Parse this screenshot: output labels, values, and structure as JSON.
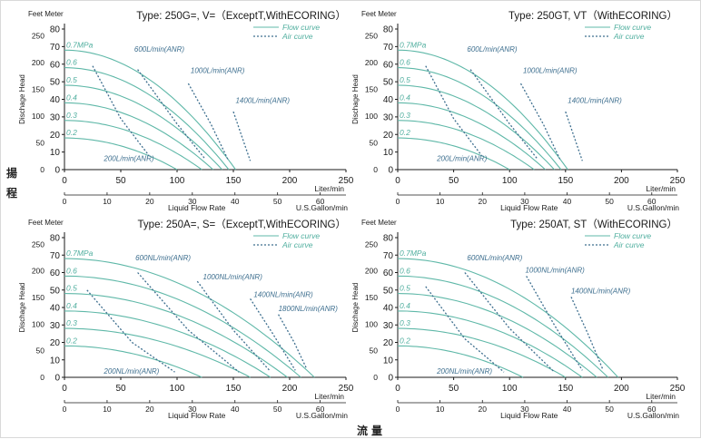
{
  "page": {
    "side_label_1": "揚",
    "side_label_2": "程",
    "bottom_label": "流量"
  },
  "chart_data": [
    {
      "type": "line",
      "title": "Type: 250G=, V=（ExceptT,WithECORING）",
      "y_units": "Feet Meter",
      "ylabel": "Dischage Head",
      "xlabel": "Liquid Flow Rate",
      "x_units_top": "Liter/min",
      "x_units_bottom": "U.S.Gallon/min",
      "xlim": [
        0,
        250
      ],
      "ylim": [
        0,
        80
      ],
      "x_ticks": [
        0,
        50,
        100,
        150,
        200,
        250
      ],
      "y_ticks": [
        0,
        10,
        20,
        30,
        40,
        50,
        60,
        70,
        80
      ],
      "ft_ticks": [
        0,
        50,
        100,
        150,
        200,
        250
      ],
      "gal_ticks": [
        0,
        10,
        20,
        30,
        40,
        50,
        60
      ],
      "legend": {
        "flow": "Flow curve",
        "air": "Air curve",
        "position": "top-right"
      },
      "grid": false,
      "flow_curves": [
        {
          "label": "0.7MPa",
          "shutoff": 68,
          "max_flow": 152
        },
        {
          "label": "0.6",
          "shutoff": 58,
          "max_flow": 146
        },
        {
          "label": "0.5",
          "shutoff": 48,
          "max_flow": 140
        },
        {
          "label": "0.4",
          "shutoff": 38,
          "max_flow": 132
        },
        {
          "label": "0.3",
          "shutoff": 28,
          "max_flow": 122
        },
        {
          "label": "0.2",
          "shutoff": 18,
          "max_flow": 100
        }
      ],
      "air_curves": [
        {
          "label": "200L/min(ANR)",
          "points": [
            [
              25,
              59
            ],
            [
              50,
              29
            ],
            [
              75,
              8
            ]
          ],
          "label_at": [
            35,
            5
          ]
        },
        {
          "label": "600L/min(ANR)",
          "points": [
            [
              65,
              57
            ],
            [
              100,
              26
            ],
            [
              125,
              6
            ]
          ],
          "label_at": [
            62,
            67
          ]
        },
        {
          "label": "1000L/min(ANR)",
          "points": [
            [
              110,
              49
            ],
            [
              130,
              26
            ],
            [
              145,
              6
            ]
          ],
          "label_at": [
            112,
            55
          ]
        },
        {
          "label": "1400L/min(ANR)",
          "points": [
            [
              150,
              33
            ],
            [
              158,
              18
            ],
            [
              165,
              5
            ]
          ],
          "label_at": [
            152,
            38
          ]
        }
      ]
    },
    {
      "type": "line",
      "title": "Type: 250GT, VT（WithECORING）",
      "y_units": "Feet Meter",
      "ylabel": "Dischage Head",
      "xlabel": "Liquid Flow Rate",
      "x_units_top": "Liter/min",
      "x_units_bottom": "U.S.Gallon/min",
      "xlim": [
        0,
        250
      ],
      "ylim": [
        0,
        80
      ],
      "x_ticks": [
        0,
        50,
        100,
        150,
        200,
        250
      ],
      "y_ticks": [
        0,
        10,
        20,
        30,
        40,
        50,
        60,
        70,
        80
      ],
      "ft_ticks": [
        0,
        50,
        100,
        150,
        200,
        250
      ],
      "gal_ticks": [
        0,
        10,
        20,
        30,
        40,
        50,
        60
      ],
      "legend": {
        "flow": "Flow curve",
        "air": "Air curve",
        "position": "top-right"
      },
      "grid": false,
      "flow_curves": [
        {
          "label": "0.7MPa",
          "shutoff": 68,
          "max_flow": 152
        },
        {
          "label": "0.6",
          "shutoff": 58,
          "max_flow": 146
        },
        {
          "label": "0.5",
          "shutoff": 48,
          "max_flow": 140
        },
        {
          "label": "0.4",
          "shutoff": 38,
          "max_flow": 132
        },
        {
          "label": "0.3",
          "shutoff": 28,
          "max_flow": 122
        },
        {
          "label": "0.2",
          "shutoff": 18,
          "max_flow": 100
        }
      ],
      "air_curves": [
        {
          "label": "200L/min(ANR)",
          "points": [
            [
              25,
              59
            ],
            [
              50,
              29
            ],
            [
              75,
              8
            ]
          ],
          "label_at": [
            35,
            5
          ]
        },
        {
          "label": "600L/min(ANR)",
          "points": [
            [
              65,
              57
            ],
            [
              100,
              26
            ],
            [
              125,
              6
            ]
          ],
          "label_at": [
            62,
            67
          ]
        },
        {
          "label": "1000L/min(ANR)",
          "points": [
            [
              110,
              49
            ],
            [
              130,
              26
            ],
            [
              145,
              6
            ]
          ],
          "label_at": [
            112,
            55
          ]
        },
        {
          "label": "1400L/min(ANR)",
          "points": [
            [
              150,
              33
            ],
            [
              158,
              18
            ],
            [
              165,
              5
            ]
          ],
          "label_at": [
            152,
            38
          ]
        }
      ]
    },
    {
      "type": "line",
      "title": "Type: 250A=, S=（ExceptT,WithECORING）",
      "y_units": "Feet Meter",
      "ylabel": "Dischage Head",
      "xlabel": "Liquid Flow Rate",
      "x_units_top": "Liter/min",
      "x_units_bottom": "U.S.Gallon/min",
      "xlim": [
        0,
        250
      ],
      "ylim": [
        0,
        80
      ],
      "x_ticks": [
        0,
        50,
        100,
        150,
        200,
        250
      ],
      "y_ticks": [
        0,
        10,
        20,
        30,
        40,
        50,
        60,
        70,
        80
      ],
      "ft_ticks": [
        0,
        50,
        100,
        150,
        200,
        250
      ],
      "gal_ticks": [
        0,
        10,
        20,
        30,
        40,
        50,
        60
      ],
      "legend": {
        "flow": "Flow curve",
        "air": "Air curve",
        "position": "top-right"
      },
      "grid": false,
      "flow_curves": [
        {
          "label": "0.7MPa",
          "shutoff": 68,
          "max_flow": 222
        },
        {
          "label": "0.6",
          "shutoff": 58,
          "max_flow": 210
        },
        {
          "label": "0.5",
          "shutoff": 48,
          "max_flow": 198
        },
        {
          "label": "0.4",
          "shutoff": 38,
          "max_flow": 183
        },
        {
          "label": "0.3",
          "shutoff": 28,
          "max_flow": 165
        },
        {
          "label": "0.2",
          "shutoff": 18,
          "max_flow": 122
        }
      ],
      "air_curves": [
        {
          "label": "200NL/min(ANR)",
          "points": [
            [
              20,
              50
            ],
            [
              60,
              20
            ],
            [
              98,
              3
            ]
          ],
          "label_at": [
            35,
            2
          ]
        },
        {
          "label": "600NL/min(ANR)",
          "points": [
            [
              65,
              60
            ],
            [
              110,
              27
            ],
            [
              155,
              3
            ]
          ],
          "label_at": [
            63,
            67
          ]
        },
        {
          "label": "1000NL/min(ANR)",
          "points": [
            [
              118,
              55
            ],
            [
              150,
              27
            ],
            [
              182,
              4
            ]
          ],
          "label_at": [
            123,
            56
          ]
        },
        {
          "label": "1400NL/min(ANR)",
          "points": [
            [
              165,
              45
            ],
            [
              185,
              25
            ],
            [
              205,
              4
            ]
          ],
          "label_at": [
            168,
            46
          ]
        },
        {
          "label": "1800NL/min(ANR)",
          "points": [
            [
              190,
              36
            ],
            [
              204,
              20
            ],
            [
              215,
              5
            ]
          ],
          "label_at": [
            190,
            38
          ]
        }
      ]
    },
    {
      "type": "line",
      "title": "Type: 250AT, ST（WithECORING）",
      "y_units": "Feet Meter",
      "ylabel": "Dischage Head",
      "xlabel": "Liquid Flow Rate",
      "x_units_top": "Liter/min",
      "x_units_bottom": "U.S.Gallon/min",
      "xlim": [
        0,
        250
      ],
      "ylim": [
        0,
        80
      ],
      "x_ticks": [
        0,
        50,
        100,
        150,
        200,
        250
      ],
      "y_ticks": [
        0,
        10,
        20,
        30,
        40,
        50,
        60,
        70,
        80
      ],
      "ft_ticks": [
        0,
        50,
        100,
        150,
        200,
        250
      ],
      "gal_ticks": [
        0,
        10,
        20,
        30,
        40,
        50,
        60
      ],
      "legend": {
        "flow": "Flow curve",
        "air": "Air curve",
        "position": "top-right"
      },
      "grid": false,
      "flow_curves": [
        {
          "label": "0.7MPa",
          "shutoff": 68,
          "max_flow": 197
        },
        {
          "label": "0.6",
          "shutoff": 58,
          "max_flow": 188
        },
        {
          "label": "0.5",
          "shutoff": 48,
          "max_flow": 178
        },
        {
          "label": "0.4",
          "shutoff": 38,
          "max_flow": 165
        },
        {
          "label": "0.3",
          "shutoff": 28,
          "max_flow": 150
        },
        {
          "label": "0.2",
          "shutoff": 18,
          "max_flow": 112
        }
      ],
      "air_curves": [
        {
          "label": "200NL/min(ANR)",
          "points": [
            [
              25,
              52
            ],
            [
              60,
              22
            ],
            [
              95,
              3
            ]
          ],
          "label_at": [
            35,
            2
          ]
        },
        {
          "label": "600NL/min(ANR)",
          "points": [
            [
              60,
              60
            ],
            [
              100,
              28
            ],
            [
              140,
              3
            ]
          ],
          "label_at": [
            62,
            67
          ]
        },
        {
          "label": "1000NL/min(ANR)",
          "points": [
            [
              115,
              58
            ],
            [
              140,
              30
            ],
            [
              165,
              4
            ]
          ],
          "label_at": [
            114,
            60
          ]
        },
        {
          "label": "1400NL/min(ANR)",
          "points": [
            [
              155,
              46
            ],
            [
              170,
              25
            ],
            [
              183,
              5
            ]
          ],
          "label_at": [
            155,
            48
          ]
        }
      ]
    }
  ]
}
